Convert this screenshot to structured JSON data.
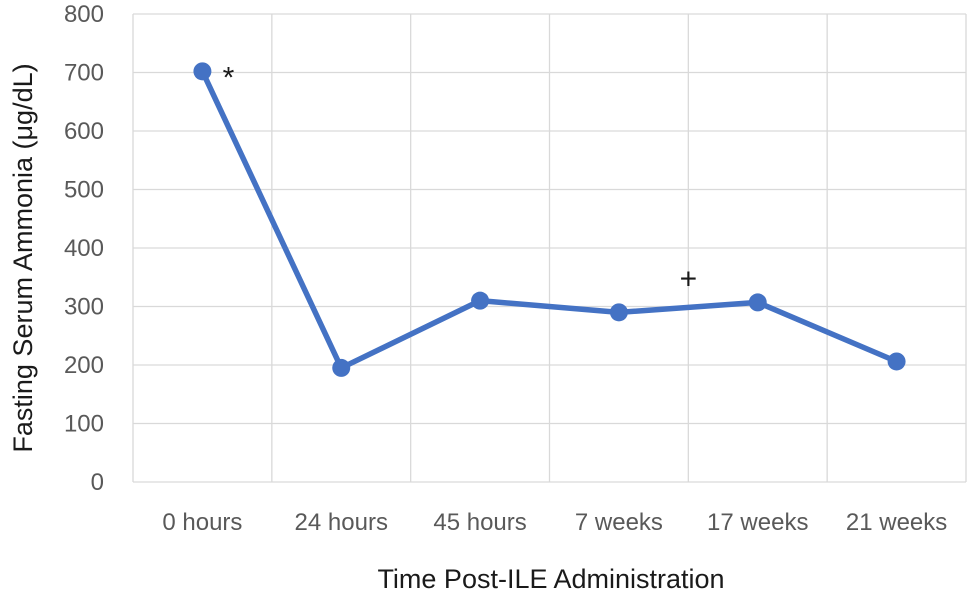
{
  "chart_data": {
    "type": "line",
    "xlabel": "Time Post-ILE Administration",
    "ylabel": "Fasting Serum Ammonia (μg/dL)",
    "ylim": [
      0,
      800
    ],
    "yticks": [
      0,
      100,
      200,
      300,
      400,
      500,
      600,
      700,
      800
    ],
    "categories": [
      "0 hours",
      "24 hours",
      "45 hours",
      "7 weeks",
      "17 weeks",
      "21 weeks"
    ],
    "series": [
      {
        "values": [
          702,
          195,
          310,
          290,
          307,
          206
        ]
      }
    ],
    "annotations": [
      {
        "text": "*",
        "category": "0 hours",
        "value": 702
      },
      {
        "text": "+",
        "category_between": [
          "7 weeks",
          "17 weeks"
        ],
        "value": 350
      }
    ],
    "grid": true,
    "colors": {
      "series": "#4472c4",
      "grid": "#d9d9d9"
    }
  }
}
